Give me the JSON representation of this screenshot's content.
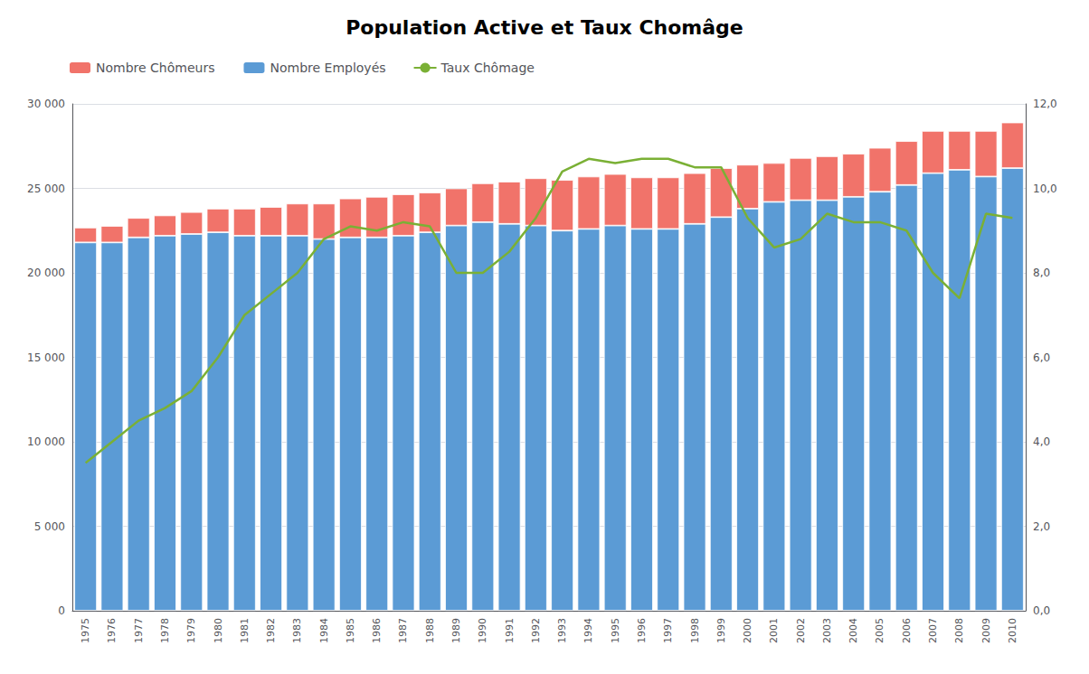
{
  "chart_data": {
    "type": "bar",
    "title": "Population Active et Taux Chomâge",
    "categories": [
      "1975",
      "1976",
      "1977",
      "1978",
      "1979",
      "1980",
      "1981",
      "1982",
      "1983",
      "1984",
      "1985",
      "1986",
      "1987",
      "1988",
      "1989",
      "1990",
      "1991",
      "1992",
      "1993",
      "1994",
      "1995",
      "1996",
      "1997",
      "1998",
      "1999",
      "2000",
      "2001",
      "2002",
      "2003",
      "2004",
      "2005",
      "2006",
      "2007",
      "2008",
      "2009",
      "2010"
    ],
    "series": [
      {
        "name": "Nombre Employés",
        "type": "bar",
        "color": "#5B9BD5",
        "values": [
          21800,
          21800,
          22100,
          22200,
          22300,
          22400,
          22200,
          22200,
          22200,
          22000,
          22100,
          22100,
          22200,
          22400,
          22800,
          23000,
          22900,
          22800,
          22500,
          22600,
          22800,
          22600,
          22600,
          22900,
          23300,
          23800,
          24200,
          24300,
          24300,
          24500,
          24800,
          25200,
          25900,
          26100,
          25700,
          26200
        ]
      },
      {
        "name": "Nombre Chômeurs",
        "type": "bar",
        "color": "#F1736A",
        "values": [
          880,
          980,
          1150,
          1200,
          1300,
          1400,
          1600,
          1700,
          1900,
          2100,
          2300,
          2400,
          2450,
          2350,
          2200,
          2300,
          2500,
          2800,
          3000,
          3100,
          3050,
          3050,
          3050,
          3000,
          2900,
          2600,
          2300,
          2500,
          2600,
          2550,
          2600,
          2600,
          2500,
          2300,
          2700,
          2700
        ]
      },
      {
        "name": "Taux Chômage",
        "type": "line",
        "axis": "y2",
        "color": "#7AB035",
        "values": [
          3.5,
          4.0,
          4.5,
          4.8,
          5.2,
          6.0,
          7.0,
          7.5,
          8.0,
          8.8,
          9.1,
          9.0,
          9.2,
          9.1,
          8.0,
          8.0,
          8.5,
          9.3,
          10.4,
          10.7,
          10.6,
          10.7,
          10.7,
          10.5,
          10.5,
          9.3,
          8.6,
          8.8,
          9.4,
          9.2,
          9.2,
          9.0,
          8.0,
          7.4,
          9.4,
          9.3
        ]
      }
    ],
    "stacked": true,
    "grid": true,
    "legend": "top left",
    "ylim": [
      0,
      30000
    ],
    "yticks": [
      0,
      {
        "value": 5000,
        "label": "5 000"
      },
      {
        "value": 10000,
        "label": "10 000"
      },
      {
        "value": 15000,
        "label": "15 000"
      },
      {
        "value": 20000,
        "label": "20 000"
      },
      {
        "value": 25000,
        "label": "25 000"
      },
      {
        "value": 30000,
        "label": "30 000"
      }
    ],
    "y2lim": [
      0,
      12.0
    ],
    "y2ticks": [
      {
        "value": 0.0,
        "label": "0,0"
      },
      {
        "value": 2.0,
        "label": "2,0"
      },
      {
        "value": 4.0,
        "label": "4,0"
      },
      {
        "value": 6.0,
        "label": "6,0"
      },
      {
        "value": 8.0,
        "label": "8,0"
      },
      {
        "value": 10.0,
        "label": "10,0"
      },
      {
        "value": 12.0,
        "label": "12,0"
      }
    ]
  }
}
